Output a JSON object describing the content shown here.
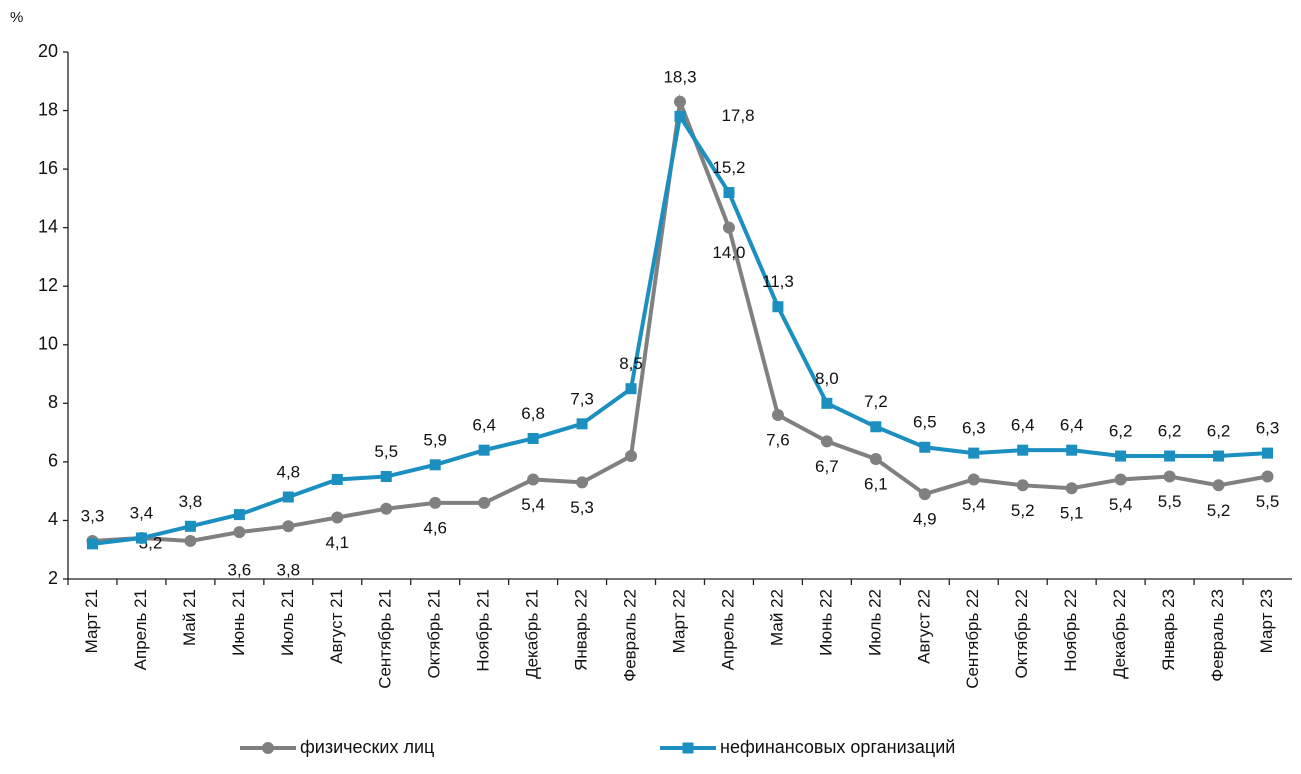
{
  "chart_data": {
    "type": "line",
    "y_label": "%",
    "categories": [
      "Март 21",
      "Апрель 21",
      "Май 21",
      "Июнь 21",
      "Июль 21",
      "Август 21",
      "Сентябрь 21",
      "Октябрь 21",
      "Ноябрь 21",
      "Декабрь 21",
      "Январь 22",
      "Февраль 22",
      "Март 22",
      "Апрель 22",
      "Май 22",
      "Июнь 22",
      "Июль 22",
      "Август 22",
      "Сентябрь 22",
      "Октябрь 22",
      "Ноябрь 22",
      "Декабрь 22",
      "Январь 23",
      "Февраль 23",
      "Март 23"
    ],
    "series": [
      {
        "name": "физических лиц",
        "color": "#808080",
        "marker": "circle",
        "values": [
          3.3,
          3.4,
          3.3,
          3.6,
          3.8,
          4.1,
          4.4,
          4.6,
          4.6,
          5.4,
          5.3,
          6.2,
          18.3,
          14.0,
          7.6,
          6.7,
          6.1,
          4.9,
          5.4,
          5.2,
          5.1,
          5.4,
          5.5,
          5.2,
          5.5
        ],
        "value_labels": [
          "3,3",
          "3,4",
          null,
          "3,6",
          "3,8",
          "4,1",
          null,
          "4,6",
          null,
          "5,4",
          "5,3",
          null,
          "18,3",
          "14,0",
          "7,6",
          "6,7",
          "6,1",
          "4,9",
          "5,4",
          "5,2",
          "5,1",
          "5,4",
          "5,5",
          "5,2",
          "5,5"
        ]
      },
      {
        "name": "нефинансовых организаций",
        "color": "#1a8fc0",
        "marker": "square",
        "values": [
          3.2,
          3.4,
          3.8,
          4.2,
          4.8,
          5.4,
          5.5,
          5.9,
          6.4,
          6.8,
          7.3,
          8.5,
          17.8,
          15.2,
          11.3,
          8.0,
          7.2,
          6.5,
          6.3,
          6.4,
          6.4,
          6.2,
          6.2,
          6.2,
          6.3
        ],
        "value_labels": [
          "3,2",
          null,
          "3,8",
          null,
          "4,8",
          null,
          "5,5",
          "5,9",
          "6,4",
          "6,8",
          "7,3",
          "8,5",
          "17,8",
          "15,2",
          "11,3",
          "8,0",
          "7,2",
          "6,5",
          "6,3",
          "6,4",
          "6,4",
          "6,2",
          "6,2",
          "6,2",
          "6,3"
        ]
      }
    ],
    "ylim": [
      2,
      20
    ],
    "yticks": [
      2,
      4,
      6,
      8,
      10,
      12,
      14,
      16,
      18,
      20
    ],
    "grid": false
  }
}
